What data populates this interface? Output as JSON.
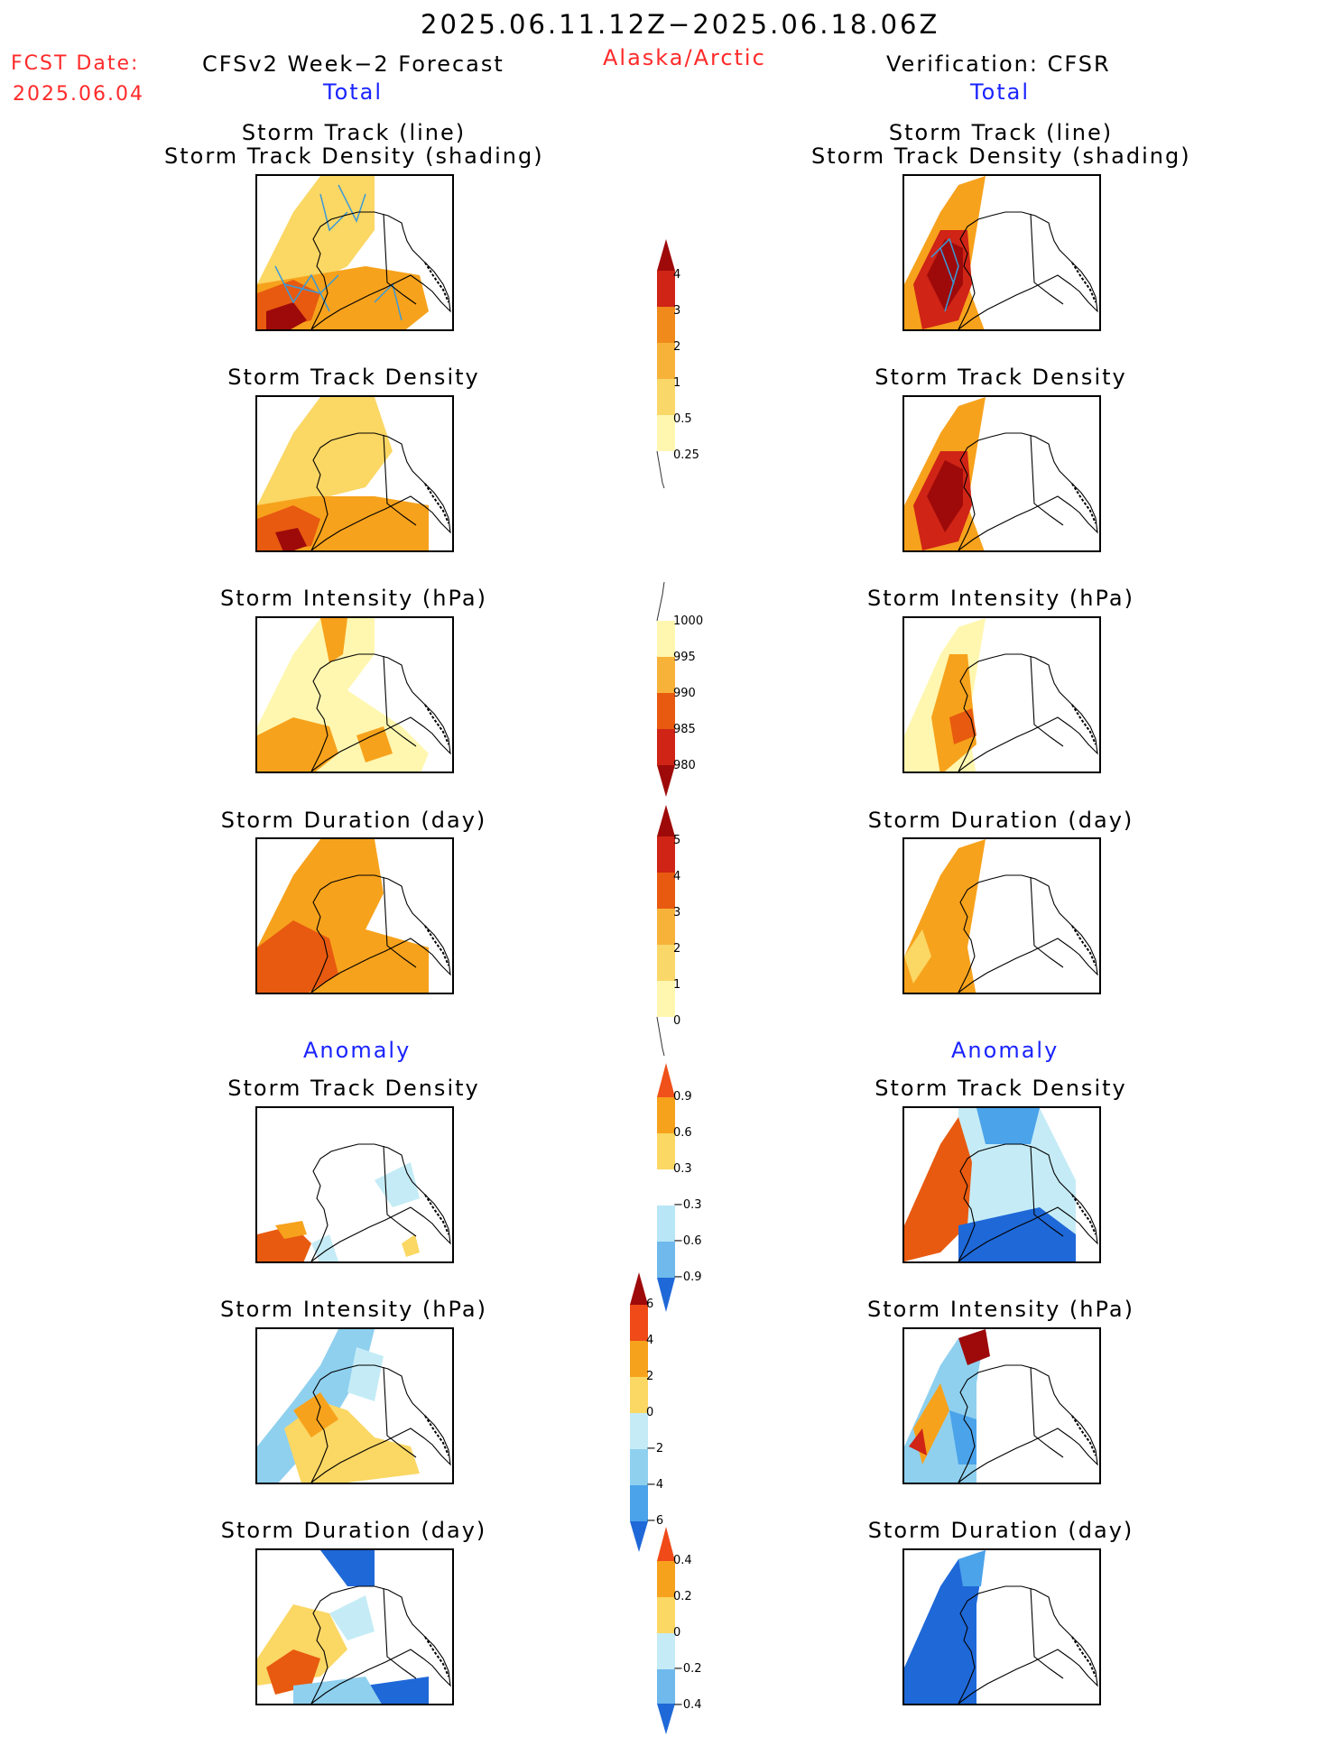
{
  "header": {
    "period": "2025.06.11.12Z−2025.06.18.06Z",
    "region": "Alaska/Arctic",
    "fcst_label": "FCST Date:",
    "fcst_date": "2025.06.04",
    "left_title": "CFSv2 Week−2 Forecast",
    "right_title": "Verification: CFSR",
    "left_total": "Total",
    "right_total": "Total"
  },
  "sections": {
    "total_label": "Total",
    "anomaly_label": "Anomaly"
  },
  "panels": {
    "track_line": "Storm Track (line)",
    "track_shading": "Storm Track Density (shading)",
    "density": "Storm Track Density",
    "intensity": "Storm Intensity (hPa)",
    "duration": "Storm Duration (day)"
  },
  "colorbars": {
    "density_total": [
      "4",
      "3",
      "2",
      "1",
      "0.5",
      "0.25"
    ],
    "intensity_total": [
      "1000",
      "995",
      "990",
      "985",
      "980"
    ],
    "duration_total": [
      "5",
      "4",
      "3",
      "2",
      "1",
      "0"
    ],
    "density_anom": [
      "0.9",
      "0.6",
      "0.3",
      "−0.3",
      "−0.6",
      "−0.9"
    ],
    "intensity_anom": [
      "6",
      "4",
      "2",
      "0",
      "−2",
      "−4",
      "−6"
    ],
    "duration_anom": [
      "0.4",
      "0.2",
      "0",
      "−0.2",
      "−0.4"
    ]
  },
  "colors": {
    "warm": [
      "#fff7b0",
      "#f9d769",
      "#f7b23a",
      "#f08a1a",
      "#e85a10",
      "#cf2416",
      "#9e0a0a"
    ],
    "cool": [
      "#c5ecf6",
      "#8fd0ef",
      "#4ba3ea",
      "#1f68d8"
    ],
    "title_red": "#ff2a2a",
    "title_blue": "#1a24ff"
  }
}
